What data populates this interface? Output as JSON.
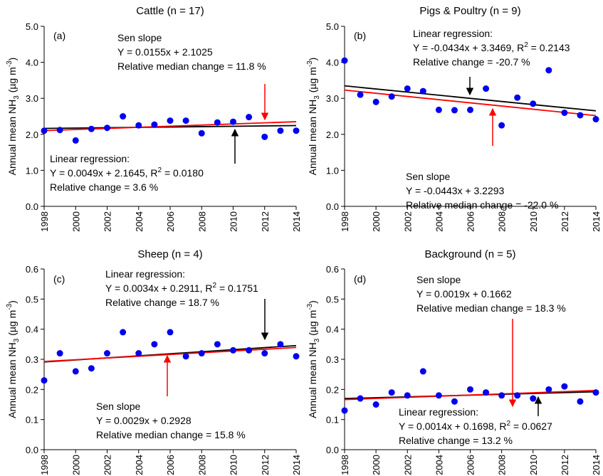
{
  "chart_data": [
    {
      "type": "scatter",
      "title": "Cattle (n = 17)",
      "panel_label": "(a)",
      "ylabel_parts": [
        "Annual mean NH",
        "3",
        " (µg m",
        "-3",
        ")"
      ],
      "x": [
        1998,
        1999,
        2000,
        2001,
        2002,
        2003,
        2004,
        2005,
        2006,
        2007,
        2008,
        2009,
        2010,
        2011,
        2012,
        2013,
        2014
      ],
      "values": [
        2.1,
        2.12,
        1.83,
        2.15,
        2.18,
        2.5,
        2.25,
        2.27,
        2.38,
        2.38,
        2.03,
        2.33,
        2.35,
        2.48,
        1.93,
        2.1,
        2.1
      ],
      "color": "#0000ee",
      "xlim": [
        1998,
        2014
      ],
      "xticks": [
        1998,
        2000,
        2002,
        2004,
        2006,
        2008,
        2010,
        2012,
        2014
      ],
      "ylim": [
        0,
        5
      ],
      "yticks": [
        {
          "value": 0,
          "label": "0.0"
        },
        {
          "value": 1,
          "label": "1.0"
        },
        {
          "value": 2,
          "label": "2.0"
        },
        {
          "value": 3,
          "label": "3.0"
        },
        {
          "value": 4,
          "label": "4.0"
        },
        {
          "value": 5,
          "label": "5.0"
        }
      ],
      "trend_lines": [
        {
          "color": "#000000",
          "slope": 0.0049,
          "intercept": 2.1645
        },
        {
          "color": "#ff0000",
          "slope": 0.0155,
          "intercept": 2.1025
        }
      ],
      "annotations": [
        {
          "lines": [
            "Sen slope",
            "Y = 0.0155x + 2.1025",
            "Relative median change = 11.8 %"
          ]
        },
        {
          "lines": [
            "Linear regression:",
            {
              "pre": "Y = 0.0049x + 2.1645, R",
              "sup": "2",
              "post": " = 0.0180"
            },
            "Relative change = 3.6 %"
          ]
        }
      ]
    },
    {
      "type": "scatter",
      "title": "Pigs & Poultry (n = 9)",
      "panel_label": "(b)",
      "ylabel_parts": [
        "Annual mean NH",
        "3",
        " (µg m",
        "-3",
        ")"
      ],
      "x": [
        1998,
        1999,
        2000,
        2001,
        2002,
        2003,
        2004,
        2005,
        2006,
        2007,
        2008,
        2009,
        2010,
        2011,
        2012,
        2013,
        2014
      ],
      "values": [
        4.05,
        3.1,
        2.9,
        3.05,
        3.27,
        3.2,
        2.68,
        2.67,
        2.68,
        3.27,
        2.25,
        3.02,
        2.85,
        3.78,
        2.6,
        2.53,
        2.42
      ],
      "color": "#0000ee",
      "xlim": [
        1998,
        2014
      ],
      "xticks": [
        1998,
        2000,
        2002,
        2004,
        2006,
        2008,
        2010,
        2012,
        2014
      ],
      "ylim": [
        0,
        5
      ],
      "yticks": [
        {
          "value": 0,
          "label": "0.0"
        },
        {
          "value": 1,
          "label": "1.0"
        },
        {
          "value": 2,
          "label": "2.0"
        },
        {
          "value": 3,
          "label": "3.0"
        },
        {
          "value": 4,
          "label": "4.0"
        },
        {
          "value": 5,
          "label": "5.0"
        }
      ],
      "trend_lines": [
        {
          "color": "#000000",
          "slope": -0.0434,
          "intercept": 3.3469
        },
        {
          "color": "#ff0000",
          "slope": -0.0443,
          "intercept": 3.2293
        }
      ],
      "annotations": [
        {
          "lines": [
            "Linear regression:",
            {
              "pre": "Y = -0.0434x + 3.3469, R",
              "sup": "2",
              "post": " = 0.2143"
            },
            "Relative change = -20.7 %"
          ]
        },
        {
          "lines": [
            "Sen slope",
            "Y = -0.0443x + 3.2293",
            "Relative median change = -22.0 %"
          ]
        }
      ]
    },
    {
      "type": "scatter",
      "title": "Sheep (n = 4)",
      "panel_label": "(c)",
      "ylabel_parts": [
        "Annual mean NH",
        "3",
        " (µg m",
        "-3",
        ")"
      ],
      "x": [
        1998,
        1999,
        2000,
        2001,
        2002,
        2003,
        2004,
        2005,
        2006,
        2007,
        2008,
        2009,
        2010,
        2011,
        2012,
        2013,
        2014
      ],
      "values": [
        0.23,
        0.32,
        0.26,
        0.27,
        0.32,
        0.39,
        0.32,
        0.35,
        0.39,
        0.31,
        0.32,
        0.35,
        0.33,
        0.33,
        0.32,
        0.35,
        0.31
      ],
      "color": "#0000ee",
      "xlim": [
        1998,
        2014
      ],
      "xticks": [
        1998,
        2000,
        2002,
        2004,
        2006,
        2008,
        2010,
        2012,
        2014
      ],
      "ylim": [
        0,
        0.6
      ],
      "yticks": [
        {
          "value": 0,
          "label": "0.0"
        },
        0.1,
        0.2,
        0.3,
        0.4,
        0.5,
        0.6
      ],
      "trend_lines": [
        {
          "color": "#000000",
          "slope": 0.0034,
          "intercept": 0.2911
        },
        {
          "color": "#ff0000",
          "slope": 0.0029,
          "intercept": 0.2928
        }
      ],
      "annotations": [
        {
          "lines": [
            "Linear regression:",
            {
              "pre": "Y = 0.0034x + 0.2911, R",
              "sup": "2",
              "post": " = 0.1751"
            },
            "Relative change = 18.7 %"
          ]
        },
        {
          "lines": [
            "Sen slope",
            "Y = 0.0029x + 0.2928",
            "Relative median change = 15.8 %"
          ]
        }
      ]
    },
    {
      "type": "scatter",
      "title": "Background (n = 5)",
      "panel_label": "(d)",
      "ylabel_parts": [
        "Annual mean NH",
        "3",
        " (µg m",
        "-3",
        ")"
      ],
      "x": [
        1998,
        1999,
        2000,
        2001,
        2002,
        2003,
        2004,
        2005,
        2006,
        2007,
        2008,
        2009,
        2010,
        2011,
        2012,
        2013,
        2014
      ],
      "values": [
        0.13,
        0.17,
        0.15,
        0.19,
        0.18,
        0.26,
        0.18,
        0.16,
        0.2,
        0.19,
        0.18,
        0.18,
        0.17,
        0.2,
        0.21,
        0.16,
        0.19
      ],
      "color": "#0000ee",
      "xlim": [
        1998,
        2014
      ],
      "xticks": [
        1998,
        2000,
        2002,
        2004,
        2006,
        2008,
        2010,
        2012,
        2014
      ],
      "ylim": [
        0,
        0.6
      ],
      "yticks": [
        {
          "value": 0,
          "label": "0.0"
        },
        0.1,
        0.2,
        0.3,
        0.4,
        0.5,
        0.6
      ],
      "trend_lines": [
        {
          "color": "#000000",
          "slope": 0.0014,
          "intercept": 0.1698
        },
        {
          "color": "#ff0000",
          "slope": 0.0019,
          "intercept": 0.1662
        }
      ],
      "annotations": [
        {
          "lines": [
            "Sen slope",
            "Y = 0.0019x + 0.1662",
            "Relative median change = 18.3 %"
          ]
        },
        {
          "lines": [
            "Linear regression:",
            {
              "pre": "Y = 0.0014x + 0.1698, R",
              "sup": "2",
              "post": " = 0.0627"
            },
            "Relative change = 13.2 %"
          ]
        }
      ]
    }
  ]
}
